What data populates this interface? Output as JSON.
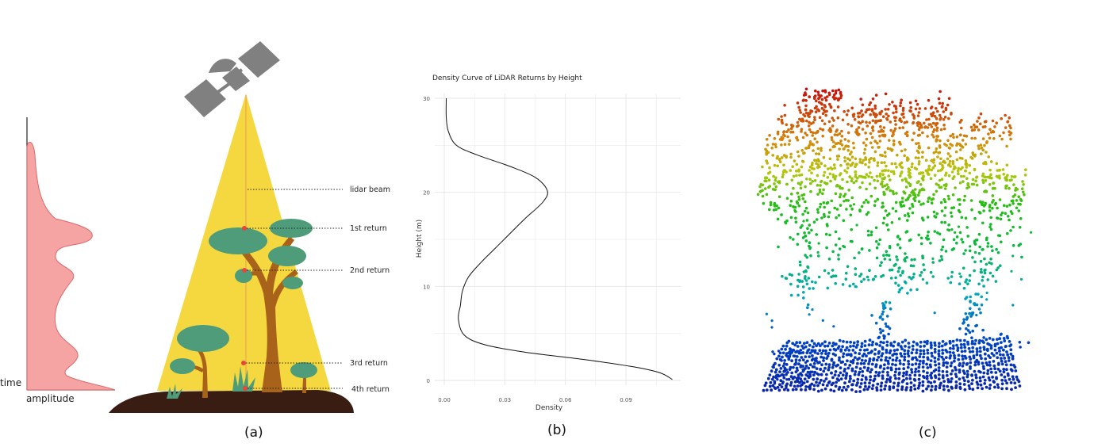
{
  "panel_a": {
    "label": "(a)",
    "axis_time": "time",
    "axis_amplitude": "amplitude",
    "annotations": [
      "lidar beam",
      "1st return",
      "2nd return",
      "3rd return",
      "4th return"
    ],
    "colors": {
      "beam": "#f5d83f",
      "canopy": "#4e9c7a",
      "trunk": "#a8621a",
      "ground": "#3a1d12",
      "satellite": "#808080",
      "waveform": "#f5a3a3",
      "return_point": "#e8453c"
    }
  },
  "panel_b": {
    "label": "(b)",
    "chart_data": {
      "type": "line",
      "title": "Density Curve of LiDAR Returns by Height",
      "xlabel": "Density",
      "ylabel": "Height (m)",
      "xlim": [
        0.0,
        0.114
      ],
      "ylim": [
        -1,
        30
      ],
      "x_ticks": [
        "0.00",
        "0.03",
        "0.06",
        "0.09"
      ],
      "y_ticks": [
        "0",
        "10",
        "20",
        "30"
      ],
      "grid": true,
      "series": [
        {
          "name": "density",
          "points": [
            [
              0.001,
              30
            ],
            [
              0.001,
              28
            ],
            [
              0.002,
              26.5
            ],
            [
              0.006,
              25
            ],
            [
              0.016,
              24
            ],
            [
              0.032,
              22.8
            ],
            [
              0.045,
              21.6
            ],
            [
              0.051,
              20.2
            ],
            [
              0.049,
              19
            ],
            [
              0.04,
              17.2
            ],
            [
              0.032,
              15.5
            ],
            [
              0.025,
              14
            ],
            [
              0.018,
              12.5
            ],
            [
              0.012,
              11
            ],
            [
              0.009,
              9.5
            ],
            [
              0.008,
              8
            ],
            [
              0.007,
              6.5
            ],
            [
              0.01,
              4.8
            ],
            [
              0.02,
              3.8
            ],
            [
              0.04,
              3
            ],
            [
              0.07,
              2.2
            ],
            [
              0.095,
              1.4
            ],
            [
              0.107,
              0.8
            ],
            [
              0.113,
              0.1
            ]
          ]
        }
      ]
    }
  },
  "panel_c": {
    "label": "(c)"
  }
}
